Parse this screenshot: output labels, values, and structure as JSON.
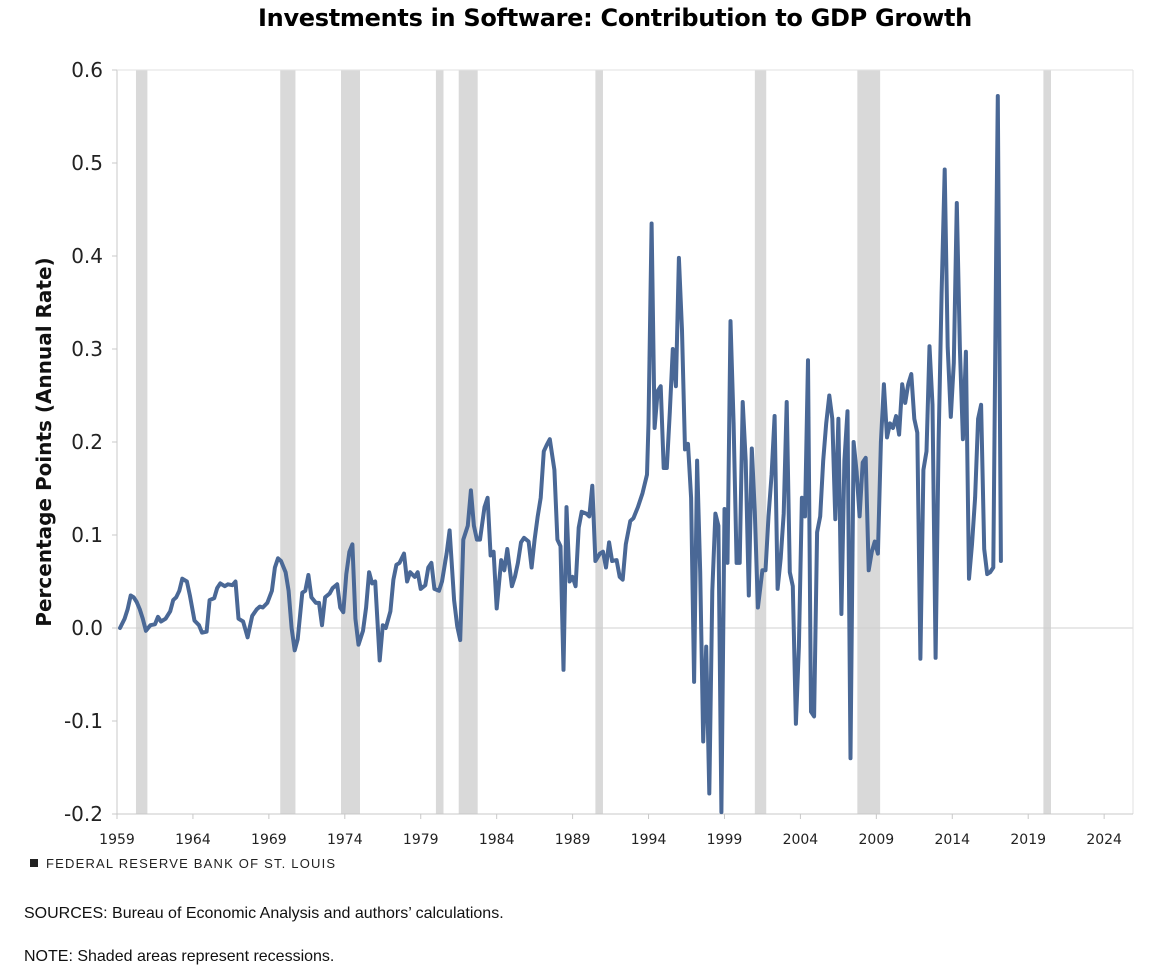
{
  "chart_data": {
    "type": "line",
    "title": "Investments in Software: Contribution to GDP Growth",
    "ylabel": "Percentage Points (Annual Rate)",
    "xlabel": "",
    "ylim": [
      -0.2,
      0.6
    ],
    "yticks": [
      0.6,
      0.5,
      0.4,
      0.3,
      0.2,
      0.1,
      0.0,
      -0.1,
      -0.2
    ],
    "ytick_labels": [
      "0.6",
      "0.5",
      "0.4",
      "0.3",
      "0.2",
      "0.1",
      "0.0",
      "-0.1",
      "-0.2"
    ],
    "xlim": [
      1959,
      2025.9
    ],
    "xticks": [
      1959,
      1964,
      1969,
      1974,
      1979,
      1984,
      1989,
      1994,
      1999,
      2004,
      2009,
      2014,
      2019,
      2024
    ],
    "xtick_labels": [
      "1959",
      "1964",
      "1969",
      "1974",
      "1979",
      "1984",
      "1989",
      "1994",
      "1999",
      "2004",
      "2009",
      "2014",
      "2019",
      "2024"
    ],
    "line_color": "#4a6896",
    "recession_color": "#d9d9d9",
    "recessions": [
      [
        1960.25,
        1961.0
      ],
      [
        1969.75,
        1970.75
      ],
      [
        1973.75,
        1975.0
      ],
      [
        1980.0,
        1980.5
      ],
      [
        1981.5,
        1982.75
      ],
      [
        1990.5,
        1991.0
      ],
      [
        2001.0,
        2001.75
      ],
      [
        2007.75,
        2009.25
      ],
      [
        2020.0,
        2020.5
      ]
    ],
    "series": [
      {
        "name": "Investments in Software contribution to GDP growth",
        "points": [
          [
            1959.2,
            0.0
          ],
          [
            1959.5,
            0.01
          ],
          [
            1959.7,
            0.02
          ],
          [
            1959.9,
            0.035
          ],
          [
            1960.1,
            0.033
          ],
          [
            1960.3,
            0.028
          ],
          [
            1960.5,
            0.02
          ],
          [
            1960.7,
            0.01
          ],
          [
            1960.9,
            -0.003
          ],
          [
            1961.2,
            0.003
          ],
          [
            1961.5,
            0.004
          ],
          [
            1961.7,
            0.012
          ],
          [
            1961.9,
            0.007
          ],
          [
            1962.2,
            0.01
          ],
          [
            1962.5,
            0.018
          ],
          [
            1962.7,
            0.03
          ],
          [
            1962.9,
            0.033
          ],
          [
            1963.1,
            0.04
          ],
          [
            1963.3,
            0.053
          ],
          [
            1963.6,
            0.05
          ],
          [
            1963.8,
            0.035
          ],
          [
            1964.1,
            0.008
          ],
          [
            1964.4,
            0.003
          ],
          [
            1964.6,
            -0.005
          ],
          [
            1964.9,
            -0.004
          ],
          [
            1965.1,
            0.03
          ],
          [
            1965.4,
            0.032
          ],
          [
            1965.6,
            0.043
          ],
          [
            1965.8,
            0.048
          ],
          [
            1966.1,
            0.045
          ],
          [
            1966.3,
            0.047
          ],
          [
            1966.6,
            0.046
          ],
          [
            1966.8,
            0.05
          ],
          [
            1967.0,
            0.01
          ],
          [
            1967.3,
            0.007
          ],
          [
            1967.6,
            -0.01
          ],
          [
            1967.9,
            0.013
          ],
          [
            1968.2,
            0.02
          ],
          [
            1968.4,
            0.023
          ],
          [
            1968.6,
            0.022
          ],
          [
            1968.9,
            0.027
          ],
          [
            1969.2,
            0.04
          ],
          [
            1969.4,
            0.065
          ],
          [
            1969.6,
            0.075
          ],
          [
            1969.8,
            0.072
          ],
          [
            1970.1,
            0.06
          ],
          [
            1970.3,
            0.04
          ],
          [
            1970.5,
            0.0
          ],
          [
            1970.7,
            -0.024
          ],
          [
            1970.9,
            -0.012
          ],
          [
            1971.2,
            0.038
          ],
          [
            1971.4,
            0.04
          ],
          [
            1971.6,
            0.057
          ],
          [
            1971.8,
            0.033
          ],
          [
            1972.1,
            0.027
          ],
          [
            1972.3,
            0.027
          ],
          [
            1972.5,
            0.003
          ],
          [
            1972.7,
            0.033
          ],
          [
            1973.0,
            0.037
          ],
          [
            1973.2,
            0.043
          ],
          [
            1973.5,
            0.047
          ],
          [
            1973.7,
            0.022
          ],
          [
            1973.9,
            0.017
          ],
          [
            1974.1,
            0.058
          ],
          [
            1974.3,
            0.082
          ],
          [
            1974.5,
            0.09
          ],
          [
            1974.7,
            0.01
          ],
          [
            1974.9,
            -0.018
          ],
          [
            1975.2,
            -0.003
          ],
          [
            1975.4,
            0.022
          ],
          [
            1975.6,
            0.06
          ],
          [
            1975.8,
            0.048
          ],
          [
            1976.0,
            0.05
          ],
          [
            1976.3,
            -0.035
          ],
          [
            1976.5,
            0.003
          ],
          [
            1976.7,
            0.0
          ],
          [
            1977.0,
            0.018
          ],
          [
            1977.2,
            0.052
          ],
          [
            1977.4,
            0.068
          ],
          [
            1977.6,
            0.07
          ],
          [
            1977.9,
            0.08
          ],
          [
            1978.1,
            0.05
          ],
          [
            1978.3,
            0.06
          ],
          [
            1978.6,
            0.055
          ],
          [
            1978.8,
            0.06
          ],
          [
            1979.0,
            0.042
          ],
          [
            1979.3,
            0.046
          ],
          [
            1979.5,
            0.065
          ],
          [
            1979.7,
            0.07
          ],
          [
            1979.9,
            0.042
          ],
          [
            1980.2,
            0.04
          ],
          [
            1980.4,
            0.05
          ],
          [
            1980.7,
            0.08
          ],
          [
            1980.9,
            0.105
          ],
          [
            1981.2,
            0.03
          ],
          [
            1981.4,
            0.002
          ],
          [
            1981.6,
            -0.013
          ],
          [
            1981.8,
            0.095
          ],
          [
            1982.1,
            0.11
          ],
          [
            1982.3,
            0.148
          ],
          [
            1982.5,
            0.11
          ],
          [
            1982.7,
            0.095
          ],
          [
            1982.9,
            0.095
          ],
          [
            1983.2,
            0.13
          ],
          [
            1983.4,
            0.14
          ],
          [
            1983.6,
            0.078
          ],
          [
            1983.8,
            0.082
          ],
          [
            1984.0,
            0.021
          ],
          [
            1984.3,
            0.073
          ],
          [
            1984.5,
            0.062
          ],
          [
            1984.7,
            0.085
          ],
          [
            1985.0,
            0.045
          ],
          [
            1985.2,
            0.055
          ],
          [
            1985.4,
            0.07
          ],
          [
            1985.6,
            0.092
          ],
          [
            1985.8,
            0.097
          ],
          [
            1986.1,
            0.093
          ],
          [
            1986.3,
            0.065
          ],
          [
            1986.5,
            0.095
          ],
          [
            1986.7,
            0.12
          ],
          [
            1986.9,
            0.14
          ],
          [
            1987.1,
            0.19
          ],
          [
            1987.3,
            0.197
          ],
          [
            1987.5,
            0.203
          ],
          [
            1987.8,
            0.17
          ],
          [
            1988.0,
            0.095
          ],
          [
            1988.2,
            0.088
          ],
          [
            1988.4,
            -0.045
          ],
          [
            1988.6,
            0.13
          ],
          [
            1988.8,
            0.05
          ],
          [
            1989.0,
            0.055
          ],
          [
            1989.2,
            0.045
          ],
          [
            1989.4,
            0.108
          ],
          [
            1989.6,
            0.125
          ],
          [
            1989.9,
            0.123
          ],
          [
            1990.1,
            0.12
          ],
          [
            1990.3,
            0.153
          ],
          [
            1990.5,
            0.072
          ],
          [
            1990.8,
            0.08
          ],
          [
            1991.0,
            0.082
          ],
          [
            1991.2,
            0.065
          ],
          [
            1991.4,
            0.092
          ],
          [
            1991.6,
            0.072
          ],
          [
            1991.9,
            0.073
          ],
          [
            1992.1,
            0.055
          ],
          [
            1992.3,
            0.052
          ],
          [
            1992.5,
            0.09
          ],
          [
            1992.8,
            0.115
          ],
          [
            1993.0,
            0.118
          ],
          [
            1993.3,
            0.13
          ],
          [
            1993.6,
            0.145
          ],
          [
            1993.9,
            0.165
          ],
          [
            1994.0,
            0.22
          ],
          [
            1994.2,
            0.435
          ],
          [
            1994.4,
            0.215
          ],
          [
            1994.6,
            0.255
          ],
          [
            1994.8,
            0.26
          ],
          [
            1995.0,
            0.172
          ],
          [
            1995.2,
            0.172
          ],
          [
            1995.4,
            0.232
          ],
          [
            1995.6,
            0.3
          ],
          [
            1995.8,
            0.26
          ],
          [
            1996.0,
            0.398
          ],
          [
            1996.2,
            0.32
          ],
          [
            1996.4,
            0.192
          ],
          [
            1996.6,
            0.198
          ],
          [
            1996.8,
            0.14
          ],
          [
            1997.0,
            -0.058
          ],
          [
            1997.2,
            0.18
          ],
          [
            1997.4,
            0.06
          ],
          [
            1997.6,
            -0.122
          ],
          [
            1997.8,
            -0.02
          ],
          [
            1998.0,
            -0.178
          ],
          [
            1998.2,
            0.04
          ],
          [
            1998.4,
            0.123
          ],
          [
            1998.6,
            0.11
          ],
          [
            1998.8,
            -0.198
          ],
          [
            1999.0,
            0.128
          ],
          [
            1999.2,
            0.07
          ],
          [
            1999.4,
            0.33
          ],
          [
            1999.6,
            0.22
          ],
          [
            1999.8,
            0.07
          ],
          [
            2000.0,
            0.07
          ],
          [
            2000.2,
            0.243
          ],
          [
            2000.4,
            0.18
          ],
          [
            2000.6,
            0.035
          ],
          [
            2000.8,
            0.193
          ],
          [
            2001.0,
            0.125
          ],
          [
            2001.2,
            0.022
          ],
          [
            2001.5,
            0.062
          ],
          [
            2001.7,
            0.062
          ],
          [
            2001.9,
            0.12
          ],
          [
            2002.1,
            0.165
          ],
          [
            2002.3,
            0.228
          ],
          [
            2002.5,
            0.042
          ],
          [
            2002.7,
            0.075
          ],
          [
            2002.9,
            0.123
          ],
          [
            2003.1,
            0.243
          ],
          [
            2003.3,
            0.06
          ],
          [
            2003.5,
            0.045
          ],
          [
            2003.7,
            -0.103
          ],
          [
            2003.9,
            -0.02
          ],
          [
            2004.1,
            0.14
          ],
          [
            2004.3,
            0.12
          ],
          [
            2004.5,
            0.288
          ],
          [
            2004.7,
            -0.09
          ],
          [
            2004.9,
            -0.095
          ],
          [
            2005.1,
            0.103
          ],
          [
            2005.3,
            0.12
          ],
          [
            2005.5,
            0.18
          ],
          [
            2005.7,
            0.22
          ],
          [
            2005.9,
            0.25
          ],
          [
            2006.1,
            0.225
          ],
          [
            2006.3,
            0.117
          ],
          [
            2006.5,
            0.225
          ],
          [
            2006.7,
            0.015
          ],
          [
            2006.9,
            0.18
          ],
          [
            2007.1,
            0.233
          ],
          [
            2007.3,
            -0.14
          ],
          [
            2007.5,
            0.2
          ],
          [
            2007.7,
            0.168
          ],
          [
            2007.9,
            0.12
          ],
          [
            2008.1,
            0.178
          ],
          [
            2008.3,
            0.183
          ],
          [
            2008.5,
            0.062
          ],
          [
            2008.7,
            0.082
          ],
          [
            2008.9,
            0.093
          ],
          [
            2009.1,
            0.08
          ],
          [
            2009.3,
            0.2
          ],
          [
            2009.5,
            0.262
          ],
          [
            2009.7,
            0.205
          ],
          [
            2009.9,
            0.22
          ],
          [
            2010.1,
            0.215
          ],
          [
            2010.3,
            0.228
          ],
          [
            2010.5,
            0.208
          ],
          [
            2010.7,
            0.262
          ],
          [
            2010.9,
            0.242
          ],
          [
            2011.1,
            0.262
          ],
          [
            2011.3,
            0.273
          ],
          [
            2011.5,
            0.225
          ],
          [
            2011.7,
            0.21
          ],
          [
            2011.9,
            -0.033
          ],
          [
            2012.1,
            0.17
          ],
          [
            2012.3,
            0.19
          ],
          [
            2012.5,
            0.303
          ],
          [
            2012.7,
            0.24
          ],
          [
            2012.9,
            -0.032
          ],
          [
            2013.1,
            0.2
          ],
          [
            2013.3,
            0.36
          ],
          [
            2013.5,
            0.493
          ],
          [
            2013.7,
            0.302
          ],
          [
            2013.9,
            0.227
          ],
          [
            2014.1,
            0.285
          ],
          [
            2014.3,
            0.457
          ],
          [
            2014.5,
            0.3
          ],
          [
            2014.7,
            0.203
          ],
          [
            2014.9,
            0.297
          ],
          [
            2015.1,
            0.053
          ],
          [
            2015.3,
            0.09
          ],
          [
            2015.5,
            0.14
          ],
          [
            2015.7,
            0.225
          ],
          [
            2015.9,
            0.24
          ],
          [
            2016.1,
            0.085
          ],
          [
            2016.3,
            0.058
          ],
          [
            2016.5,
            0.06
          ],
          [
            2016.7,
            0.065
          ],
          [
            2016.9,
            0.42
          ],
          [
            2017.0,
            0.572
          ],
          [
            2017.2,
            0.072
          ]
        ]
      }
    ]
  },
  "branding": "FEDERAL RESERVE BANK OF ST. LOUIS",
  "sources": "SOURCES: Bureau of Economic Analysis and authors’ calculations.",
  "note": "NOTE: Shaded areas represent recessions."
}
